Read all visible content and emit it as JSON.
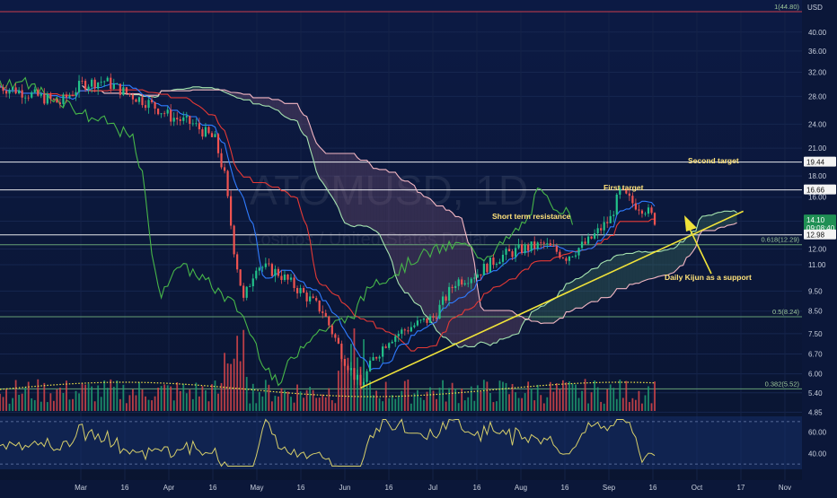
{
  "header": {
    "currency": "USD"
  },
  "watermark": {
    "symbol": "ATOMUSD, 1D",
    "description": "Cosmos / United States Dollar"
  },
  "colors": {
    "background": "#0b1739",
    "candle_up": "#22c28a",
    "candle_down": "#ef5350",
    "kijun": "#e53935",
    "tenkan": "#2f7bff",
    "chikou": "#47b649",
    "span_a": "#a5e3b0",
    "span_b": "#f3b7c3",
    "trendline": "#f0e33a",
    "rsi": "#d7cf6a",
    "volume_ma": "#f3e64a"
  },
  "chart_data": {
    "type": "candlestick",
    "symbol": "ATOMUSD",
    "interval": "1D",
    "price_scale": "log",
    "ylim": [
      4.6,
      44.8
    ],
    "price_axis_ticks": [
      40.0,
      36.0,
      32.0,
      28.0,
      24.0,
      21.0,
      18.0,
      16.0,
      14.0,
      12.0,
      11.0,
      9.5,
      8.5,
      7.5,
      6.7,
      6.0,
      5.4,
      4.85
    ],
    "time_axis_labels": [
      "Mar",
      "16",
      "Apr",
      "16",
      "May",
      "16",
      "Jun",
      "16",
      "Jul",
      "16",
      "Aug",
      "16",
      "Sep",
      "16",
      "Oct",
      "17",
      "Nov"
    ],
    "price_tags": [
      {
        "label": "19.44",
        "value": 19.44,
        "style": "white"
      },
      {
        "label": "16.66",
        "value": 16.66,
        "style": "white"
      },
      {
        "label": "14.10",
        "sublabel": "09:08:40",
        "value": 14.1,
        "style": "green"
      },
      {
        "label": "12.98",
        "value": 12.98,
        "style": "white"
      }
    ],
    "horizontal_levels": [
      {
        "value": 44.8,
        "label": "1(44.80)",
        "color": "#e0414e"
      },
      {
        "value": 19.44,
        "label": "",
        "color": "#ffffff"
      },
      {
        "value": 16.66,
        "label": "",
        "color": "#ffffff"
      },
      {
        "value": 12.98,
        "label": "",
        "color": "#ffffff"
      },
      {
        "value": 12.29,
        "label": "0.618(12.29)",
        "color": "#6fae7c"
      },
      {
        "value": 8.24,
        "label": "0.5(8.24)",
        "color": "#6fae7c"
      },
      {
        "value": 5.52,
        "label": "0.382(5.52)",
        "color": "#6fae7c"
      }
    ],
    "annotations": [
      {
        "text": "Second target"
      },
      {
        "text": "First target"
      },
      {
        "text": "Short term resistance"
      },
      {
        "text": "Daily Kijun as a support"
      }
    ],
    "trendline": {
      "from": [
        "Jun 18",
        5.55
      ],
      "to": [
        "Oct 17",
        14.8
      ]
    },
    "series": {
      "close": [
        [
          "Feb 24",
          29.5
        ],
        [
          "Mar 1",
          29.0
        ],
        [
          "Mar 8",
          28.0
        ],
        [
          "Mar 15",
          27.0
        ],
        [
          "Mar 22",
          30.0
        ],
        [
          "Mar 29",
          30.5
        ],
        [
          "Apr 5",
          28.5
        ],
        [
          "Apr 12",
          27.0
        ],
        [
          "Apr 19",
          25.0
        ],
        [
          "Apr 26",
          24.0
        ],
        [
          "May 3",
          22.0
        ],
        [
          "May 6",
          18.0
        ],
        [
          "May 9",
          12.0
        ],
        [
          "May 12",
          9.0
        ],
        [
          "May 16",
          11.0
        ],
        [
          "May 23",
          10.5
        ],
        [
          "May 30",
          9.5
        ],
        [
          "Jun 6",
          8.5
        ],
        [
          "Jun 13",
          6.5
        ],
        [
          "Jun 18",
          5.6
        ],
        [
          "Jun 22",
          6.5
        ],
        [
          "Jun 27",
          7.3
        ],
        [
          "Jul 4",
          7.8
        ],
        [
          "Jul 11",
          8.2
        ],
        [
          "Jul 18",
          10.0
        ],
        [
          "Jul 25",
          10.5
        ],
        [
          "Aug 1",
          11.5
        ],
        [
          "Aug 8",
          12.0
        ],
        [
          "Aug 15",
          12.3
        ],
        [
          "Aug 22",
          11.5
        ],
        [
          "Aug 29",
          12.5
        ],
        [
          "Sep 5",
          14.2
        ],
        [
          "Sep 8",
          16.5
        ],
        [
          "Sep 12",
          15.5
        ],
        [
          "Sep 16",
          15.0
        ],
        [
          "Sep 19",
          14.1
        ]
      ]
    },
    "rsi": {
      "ticks": [
        60.0,
        40.0
      ]
    }
  }
}
